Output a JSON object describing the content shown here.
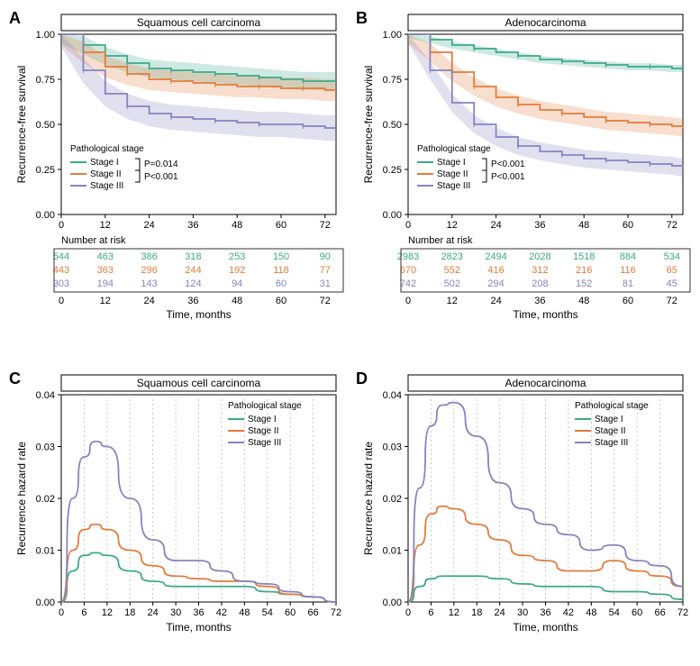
{
  "colors": {
    "stageI": "#3da98a",
    "stageII": "#e37c3b",
    "stageIII": "#8584c0",
    "stageI_fill": "rgba(61,169,138,0.25)",
    "stageII_fill": "rgba(227,124,59,0.25)",
    "stageIII_fill": "rgba(133,132,192,0.25)",
    "axis": "#000000",
    "grid": "#bdbdbd",
    "text": "#000000",
    "bg": "#ffffff"
  },
  "axis_fontsize": 11,
  "title_fontsize": 12,
  "label_fontsize": 12,
  "legend_fontsize": 10,
  "legend_title_fontsize": 10,
  "panelA": {
    "label": "A",
    "title": "Squamous cell carcinoma",
    "type": "km",
    "ylabel": "Recurrence-free survival",
    "xlabel": "Time, months",
    "xlim": [
      0,
      75
    ],
    "xticks": [
      0,
      12,
      24,
      36,
      48,
      60,
      72
    ],
    "ylim": [
      0,
      1
    ],
    "yticks": [
      0.0,
      0.25,
      0.5,
      0.75,
      1.0
    ],
    "legend_title": "Pathological stage",
    "legend_items": [
      "Stage I",
      "Stage II",
      "Stage III"
    ],
    "pvals": [
      "P=0.014",
      "P<0.001"
    ],
    "series": {
      "stageI": {
        "x": [
          0,
          6,
          12,
          18,
          24,
          30,
          36,
          42,
          48,
          54,
          60,
          66,
          72,
          75
        ],
        "y": [
          1.0,
          0.94,
          0.88,
          0.84,
          0.81,
          0.8,
          0.79,
          0.78,
          0.77,
          0.76,
          0.75,
          0.74,
          0.74,
          0.74
        ],
        "ci": 0.05
      },
      "stageII": {
        "x": [
          0,
          6,
          12,
          18,
          24,
          30,
          36,
          42,
          48,
          54,
          60,
          66,
          72,
          75
        ],
        "y": [
          1.0,
          0.9,
          0.82,
          0.78,
          0.75,
          0.74,
          0.73,
          0.72,
          0.71,
          0.71,
          0.7,
          0.7,
          0.69,
          0.69
        ],
        "ci": 0.06
      },
      "stageIII": {
        "x": [
          0,
          6,
          12,
          18,
          24,
          30,
          36,
          42,
          48,
          54,
          60,
          66,
          72,
          75
        ],
        "y": [
          1.0,
          0.8,
          0.67,
          0.6,
          0.56,
          0.54,
          0.53,
          0.52,
          0.51,
          0.5,
          0.5,
          0.49,
          0.48,
          0.48
        ],
        "ci": 0.07
      }
    },
    "risk_header": "Number at risk",
    "risk_x": [
      0,
      12,
      24,
      36,
      48,
      60,
      72
    ],
    "risk": {
      "stageI": [
        544,
        463,
        386,
        318,
        253,
        150,
        90
      ],
      "stageII": [
        443,
        363,
        296,
        244,
        192,
        118,
        77
      ],
      "stageIII": [
        303,
        194,
        143,
        124,
        94,
        60,
        31
      ]
    }
  },
  "panelB": {
    "label": "B",
    "title": "Adenocarcinoma",
    "type": "km",
    "ylabel": "Recurrence-free survival",
    "xlabel": "Time, months",
    "xlim": [
      0,
      75
    ],
    "xticks": [
      0,
      12,
      24,
      36,
      48,
      60,
      72
    ],
    "ylim": [
      0,
      1
    ],
    "yticks": [
      0.0,
      0.25,
      0.5,
      0.75,
      1.0
    ],
    "legend_title": "Pathological stage",
    "legend_items": [
      "Stage I",
      "Stage II",
      "Stage III"
    ],
    "pvals": [
      "P<0.001",
      "P<0.001"
    ],
    "series": {
      "stageI": {
        "x": [
          0,
          6,
          12,
          18,
          24,
          30,
          36,
          42,
          48,
          54,
          60,
          66,
          72,
          75
        ],
        "y": [
          1.0,
          0.97,
          0.94,
          0.92,
          0.9,
          0.88,
          0.86,
          0.85,
          0.84,
          0.83,
          0.82,
          0.82,
          0.81,
          0.81
        ],
        "ci": 0.02
      },
      "stageII": {
        "x": [
          0,
          6,
          12,
          18,
          24,
          30,
          36,
          42,
          48,
          54,
          60,
          66,
          72,
          75
        ],
        "y": [
          1.0,
          0.9,
          0.79,
          0.71,
          0.65,
          0.61,
          0.58,
          0.56,
          0.54,
          0.52,
          0.51,
          0.5,
          0.49,
          0.48
        ],
        "ci": 0.05
      },
      "stageIII": {
        "x": [
          0,
          6,
          12,
          18,
          24,
          30,
          36,
          42,
          48,
          54,
          60,
          66,
          72,
          75
        ],
        "y": [
          1.0,
          0.8,
          0.62,
          0.5,
          0.43,
          0.38,
          0.35,
          0.33,
          0.31,
          0.3,
          0.29,
          0.28,
          0.27,
          0.26
        ],
        "ci": 0.05
      }
    },
    "risk_header": "Number at risk",
    "risk_x": [
      0,
      12,
      24,
      36,
      48,
      60,
      72
    ],
    "risk": {
      "stageI": [
        2983,
        2823,
        2494,
        2028,
        1518,
        884,
        534
      ],
      "stageII": [
        670,
        552,
        416,
        312,
        216,
        116,
        65
      ],
      "stageIII": [
        742,
        502,
        294,
        208,
        152,
        81,
        45
      ]
    }
  },
  "panelC": {
    "label": "C",
    "title": "Squamous cell carcinoma",
    "type": "hazard",
    "ylabel": "Recurrence hazard rate",
    "xlabel": "Time, months",
    "xlim": [
      0,
      72
    ],
    "xticks": [
      0,
      6,
      12,
      18,
      24,
      30,
      36,
      42,
      48,
      54,
      60,
      66,
      72
    ],
    "ylim": [
      0,
      0.04
    ],
    "yticks": [
      0.0,
      0.01,
      0.02,
      0.03,
      0.04
    ],
    "legend_title": "Pathological stage",
    "legend_items": [
      "Stage I",
      "Stage II",
      "Stage III"
    ],
    "series": {
      "stageI": {
        "x": [
          0,
          3,
          6,
          9,
          12,
          18,
          24,
          30,
          36,
          42,
          48,
          54,
          60,
          66,
          72
        ],
        "y": [
          0.0,
          0.006,
          0.009,
          0.0095,
          0.009,
          0.006,
          0.004,
          0.003,
          0.003,
          0.003,
          0.003,
          0.002,
          0.0015,
          0.001,
          0.0
        ]
      },
      "stageII": {
        "x": [
          0,
          3,
          6,
          9,
          12,
          18,
          24,
          30,
          36,
          42,
          48,
          54,
          60,
          66,
          72
        ],
        "y": [
          0.0,
          0.01,
          0.014,
          0.015,
          0.014,
          0.01,
          0.007,
          0.005,
          0.0045,
          0.004,
          0.004,
          0.003,
          0.0015,
          0.001,
          0.0
        ]
      },
      "stageIII": {
        "x": [
          0,
          3,
          6,
          9,
          12,
          18,
          24,
          30,
          36,
          42,
          48,
          54,
          60,
          66,
          72
        ],
        "y": [
          0.0,
          0.02,
          0.028,
          0.031,
          0.03,
          0.02,
          0.012,
          0.008,
          0.008,
          0.006,
          0.004,
          0.0035,
          0.002,
          0.001,
          0.0
        ]
      }
    }
  },
  "panelD": {
    "label": "D",
    "title": "Adenocarcinoma",
    "type": "hazard",
    "ylabel": "Recurrence hazard rate",
    "xlabel": "Time, months",
    "xlim": [
      0,
      72
    ],
    "xticks": [
      0,
      6,
      12,
      18,
      24,
      30,
      36,
      42,
      48,
      54,
      60,
      66,
      72
    ],
    "ylim": [
      0,
      0.04
    ],
    "yticks": [
      0.0,
      0.01,
      0.02,
      0.03,
      0.04
    ],
    "legend_title": "Pathological stage",
    "legend_items": [
      "Stage I",
      "Stage II",
      "Stage III"
    ],
    "series": {
      "stageI": {
        "x": [
          0,
          3,
          6,
          9,
          12,
          18,
          24,
          30,
          36,
          42,
          48,
          54,
          60,
          66,
          72
        ],
        "y": [
          0.0,
          0.003,
          0.0045,
          0.005,
          0.005,
          0.005,
          0.0045,
          0.0035,
          0.003,
          0.003,
          0.003,
          0.002,
          0.002,
          0.0015,
          0.0005
        ]
      },
      "stageII": {
        "x": [
          0,
          3,
          6,
          9,
          12,
          18,
          24,
          30,
          36,
          42,
          48,
          54,
          60,
          66,
          72
        ],
        "y": [
          0.0,
          0.011,
          0.017,
          0.0185,
          0.018,
          0.015,
          0.012,
          0.009,
          0.008,
          0.006,
          0.006,
          0.008,
          0.006,
          0.005,
          0.003
        ]
      },
      "stageIII": {
        "x": [
          0,
          3,
          6,
          9,
          12,
          18,
          24,
          30,
          36,
          42,
          48,
          54,
          60,
          66,
          72
        ],
        "y": [
          0.0,
          0.022,
          0.034,
          0.038,
          0.0385,
          0.032,
          0.023,
          0.018,
          0.015,
          0.013,
          0.01,
          0.011,
          0.008,
          0.007,
          0.003
        ]
      }
    }
  }
}
